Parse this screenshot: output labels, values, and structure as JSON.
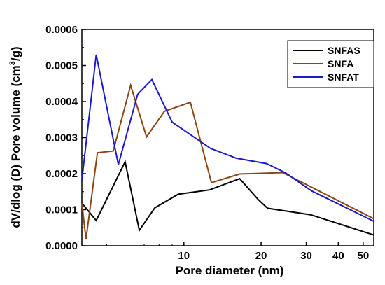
{
  "chart_data": {
    "type": "line",
    "title": "",
    "xlabel": "Pore diameter (nm)",
    "ylabel_main": "dV/dlog (D) Pore volume (cm",
    "ylabel_sup": "3",
    "ylabel_end": "/g)",
    "x_scale": "log",
    "xlim": [
      4.0,
      55
    ],
    "ylim": [
      0,
      0.0006
    ],
    "x_ticks": [
      10,
      20,
      30,
      40,
      50
    ],
    "x_tick_labels": [
      "10",
      "20",
      "30",
      "40",
      "50"
    ],
    "y_ticks": [
      0,
      0.0001,
      0.0002,
      0.0003,
      0.0004,
      0.0005,
      0.0006
    ],
    "y_tick_labels": [
      "0.0000",
      "0.0001",
      "0.0002",
      "0.0003",
      "0.0004",
      "0.0005",
      "0.0006"
    ],
    "grid": false,
    "legend_position": "top-right",
    "series": [
      {
        "name": "SNFAS",
        "color": "#000000",
        "x": [
          4.0,
          4.55,
          5.9,
          6.7,
          7.7,
          9.5,
          12.6,
          16.5,
          19.5,
          21.2,
          31.2,
          55
        ],
        "y": [
          0.000118,
          7e-05,
          0.000233,
          4.3e-05,
          0.000105,
          0.000143,
          0.000155,
          0.000186,
          0.000128,
          0.000104,
          8.6e-05,
          3e-05
        ]
      },
      {
        "name": "SNFA",
        "color": "#8b4513",
        "x": [
          4.0,
          4.15,
          4.6,
          5.3,
          6.2,
          7.15,
          8.4,
          10.6,
          12.8,
          16.5,
          24.3,
          55
        ],
        "y": [
          0.000118,
          1.8e-05,
          0.000258,
          0.000263,
          0.000445,
          0.000302,
          0.000373,
          0.000398,
          0.000175,
          0.000199,
          0.000203,
          7.5e-05
        ]
      },
      {
        "name": "SNFAT",
        "color": "#1a1acc",
        "x": [
          4.0,
          4.55,
          5.55,
          6.6,
          7.5,
          9.0,
          12.7,
          16.0,
          21.0,
          24.8,
          31.5,
          55
        ],
        "y": [
          0.000182,
          0.00053,
          0.000225,
          0.00042,
          0.000461,
          0.000343,
          0.00027,
          0.000243,
          0.000228,
          0.000203,
          0.000152,
          6.8e-05
        ]
      }
    ]
  }
}
